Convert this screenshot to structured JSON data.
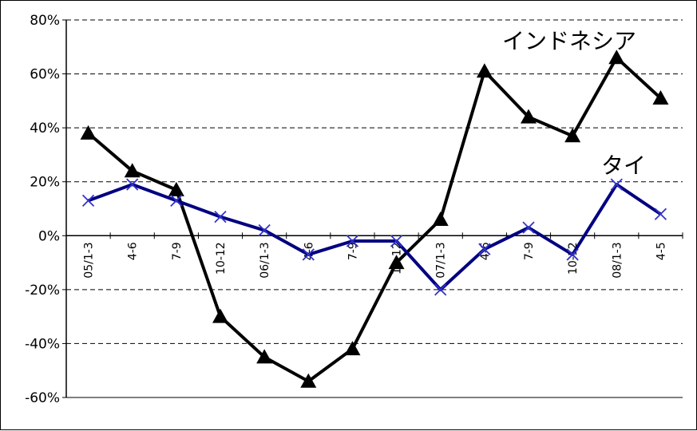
{
  "chart_data": {
    "type": "line",
    "title": "",
    "xlabel": "",
    "ylabel": "",
    "ylim": [
      -60,
      80
    ],
    "yticks": [
      80,
      60,
      40,
      20,
      0,
      -20,
      -40,
      -60
    ],
    "ytick_labels": [
      "80%",
      "60%",
      "40%",
      "20%",
      "0%",
      "-20%",
      "-40%",
      "-60%"
    ],
    "grid": "horizontal dashed",
    "categories": [
      "05/1-3",
      "4-6",
      "7-9",
      "10-12",
      "06/1-3",
      "4-6",
      "7-9",
      "10-12",
      "07/1-3",
      "4-6",
      "7-9",
      "10-12",
      "08/1-3",
      "4-5"
    ],
    "series": [
      {
        "name": "インドネシア",
        "color": "#000000",
        "marker": "triangle",
        "values": [
          38,
          24,
          17,
          -30,
          -45,
          -54,
          -42,
          -10,
          6,
          61,
          44,
          37,
          66,
          51
        ]
      },
      {
        "name": "タイ",
        "color": "#000080",
        "marker": "x",
        "values": [
          13,
          19,
          13,
          7,
          2,
          -7,
          -2,
          -2,
          -20,
          -5,
          3,
          -7,
          19,
          8
        ]
      }
    ]
  }
}
